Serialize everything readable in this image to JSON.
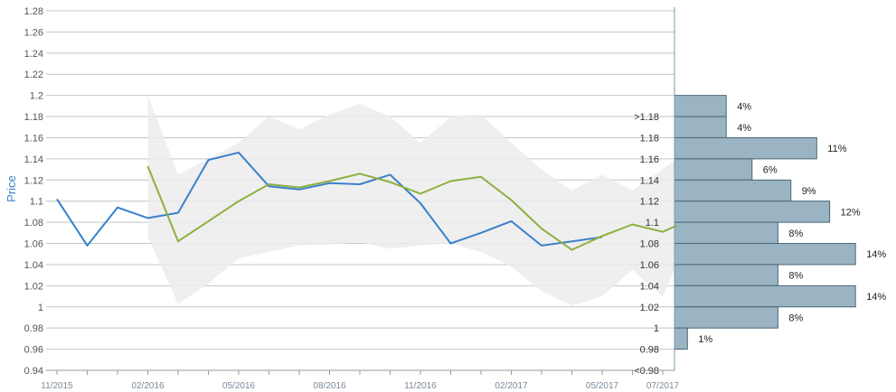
{
  "chart_data": {
    "type": "line",
    "ylabel": "Price",
    "ylim": [
      0.94,
      1.28
    ],
    "yticks": [
      "0.94",
      "0.96",
      "0.98",
      "1",
      "1.02",
      "1.04",
      "1.06",
      "1.08",
      "1.1",
      "1.12",
      "1.14",
      "1.16",
      "1.18",
      "1.2",
      "1.22",
      "1.24",
      "1.26",
      "1.28"
    ],
    "xticks": [
      "11/2015",
      "02/2016",
      "05/2016",
      "08/2016",
      "11/2016",
      "02/2017",
      "05/2017",
      "07/2017"
    ],
    "grid": true,
    "series": [
      {
        "color": "#3a80cc",
        "points": [
          [
            "2015-11",
            1.102
          ],
          [
            "2015-12",
            1.058
          ],
          [
            "2016-01",
            1.094
          ],
          [
            "2016-02",
            1.084
          ],
          [
            "2016-03",
            1.089
          ],
          [
            "2016-04",
            1.139
          ],
          [
            "2016-05",
            1.146
          ],
          [
            "2016-06",
            1.114
          ],
          [
            "2016-07",
            1.111
          ],
          [
            "2016-08",
            1.117
          ],
          [
            "2016-09",
            1.116
          ],
          [
            "2016-10",
            1.125
          ],
          [
            "2016-11",
            1.098
          ],
          [
            "2016-12",
            1.06
          ],
          [
            "2017-01",
            1.07
          ],
          [
            "2017-02",
            1.081
          ],
          [
            "2017-03",
            1.058
          ],
          [
            "2017-04",
            1.062
          ],
          [
            "2017-05",
            1.066
          ]
        ]
      },
      {
        "color": "#8db040",
        "points": [
          [
            "2016-02",
            1.133
          ],
          [
            "2016-03",
            1.062
          ],
          [
            "2016-04",
            1.081
          ],
          [
            "2016-05",
            1.1
          ],
          [
            "2016-06",
            1.116
          ],
          [
            "2016-07",
            1.113
          ],
          [
            "2016-08",
            1.119
          ],
          [
            "2016-09",
            1.126
          ],
          [
            "2016-10",
            1.118
          ],
          [
            "2016-11",
            1.107
          ],
          [
            "2016-12",
            1.119
          ],
          [
            "2017-01",
            1.123
          ],
          [
            "2017-02",
            1.101
          ],
          [
            "2017-03",
            1.074
          ],
          [
            "2017-04",
            1.054
          ],
          [
            "2017-05",
            1.067
          ],
          [
            "2017-06",
            1.078
          ],
          [
            "2017-07",
            1.071
          ],
          [
            "2017-07-15",
            1.077
          ]
        ]
      }
    ],
    "band": {
      "color": "#ececec",
      "upper": [
        [
          "2016-02",
          1.2
        ],
        [
          "2016-03",
          1.125
        ],
        [
          "2016-04",
          1.14
        ],
        [
          "2016-05",
          1.155
        ],
        [
          "2016-06",
          1.18
        ],
        [
          "2016-07",
          1.168
        ],
        [
          "2016-08",
          1.182
        ],
        [
          "2016-09",
          1.192
        ],
        [
          "2016-10",
          1.18
        ],
        [
          "2016-11",
          1.155
        ],
        [
          "2016-12",
          1.18
        ],
        [
          "2017-01",
          1.182
        ],
        [
          "2017-02",
          1.155
        ],
        [
          "2017-03",
          1.13
        ],
        [
          "2017-04",
          1.11
        ],
        [
          "2017-05",
          1.125
        ],
        [
          "2017-06",
          1.11
        ],
        [
          "2017-07",
          1.13
        ],
        [
          "2017-07-15",
          1.14
        ]
      ],
      "lower": [
        [
          "2016-02",
          1.066
        ],
        [
          "2016-03",
          1.003
        ],
        [
          "2016-04",
          1.022
        ],
        [
          "2016-05",
          1.046
        ],
        [
          "2016-06",
          1.052
        ],
        [
          "2016-07",
          1.058
        ],
        [
          "2016-08",
          1.059
        ],
        [
          "2016-09",
          1.061
        ],
        [
          "2016-10",
          1.055
        ],
        [
          "2016-11",
          1.058
        ],
        [
          "2016-12",
          1.06
        ],
        [
          "2017-01",
          1.052
        ],
        [
          "2017-02",
          1.038
        ],
        [
          "2017-03",
          1.015
        ],
        [
          "2017-04",
          1.001
        ],
        [
          "2017-05",
          1.01
        ],
        [
          "2017-06",
          1.035
        ],
        [
          "2017-07",
          1.01
        ],
        [
          "2017-07-15",
          1.04
        ]
      ]
    },
    "histogram": {
      "color": "#9ab4c4",
      "stroke": "#4a6676",
      "bins": [
        {
          "label": ">1.18",
          "center": 1.19,
          "pct": 4,
          "pct_label": "4%"
        },
        {
          "label": "1.18",
          "center": 1.17,
          "pct": 4,
          "pct_label": "4%"
        },
        {
          "label": "1.16",
          "center": 1.15,
          "pct": 11,
          "pct_label": "11%"
        },
        {
          "label": "1.14",
          "center": 1.13,
          "pct": 6,
          "pct_label": "6%"
        },
        {
          "label": "1.12",
          "center": 1.11,
          "pct": 9,
          "pct_label": "9%"
        },
        {
          "label": "1.1",
          "center": 1.09,
          "pct": 12,
          "pct_label": "12%"
        },
        {
          "label": "1.08",
          "center": 1.07,
          "pct": 8,
          "pct_label": "8%"
        },
        {
          "label": "1.06",
          "center": 1.05,
          "pct": 14,
          "pct_label": "14%"
        },
        {
          "label": "1.04",
          "center": 1.03,
          "pct": 8,
          "pct_label": "8%"
        },
        {
          "label": "1.02",
          "center": 1.01,
          "pct": 14,
          "pct_label": "14%"
        },
        {
          "label": "1",
          "center": 0.99,
          "pct": 8,
          "pct_label": "8%"
        },
        {
          "label": "0.98",
          "center": 0.97,
          "pct": 1,
          "pct_label": "1%"
        },
        {
          "label": "<0.98",
          "center": null,
          "pct": null,
          "pct_label": ""
        }
      ]
    }
  }
}
